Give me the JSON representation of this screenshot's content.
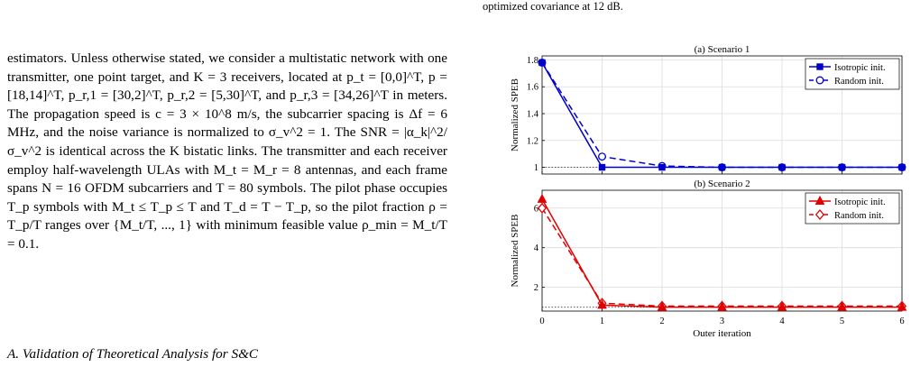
{
  "caption_tail": "optimized covariance at 12 dB.",
  "body_paragraph": "estimators. Unless otherwise stated, we consider a multistatic network with one transmitter, one point target, and K = 3 receivers, located at p_t = [0,0]^T, p = [18,14]^T, p_r,1 = [30,2]^T, p_r,2 = [5,30]^T, and p_r,3 = [34,26]^T in meters. The propagation speed is c = 3 × 10^8 m/s, the subcarrier spacing is Δf = 6 MHz, and the noise variance is normalized to σ_v^2 = 1. The SNR = |α_k|^2/σ_v^2 is identical across the K bistatic links. The transmitter and each receiver employ half-wavelength ULAs with M_t = M_r = 8 antennas, and each frame spans N = 16 OFDM subcarriers and T = 80 symbols. The pilot phase occupies T_p symbols with M_t ≤ T_p ≤ T and T_d = T − T_p, so the pilot fraction ρ = T_p/T ranges over {M_t/T, ..., 1} with minimum feasible value ρ_min = M_t/T = 0.1.",
  "subsection_title": "A. Validation of Theoretical Analysis for S&C",
  "colors": {
    "scenario1": "#0000cc",
    "scenario2": "#e00000",
    "reference": "#555555"
  },
  "chart_data": [
    {
      "type": "line",
      "title": "(a) Scenario 1",
      "xlabel": "",
      "ylabel": "Normalized SPEB",
      "x": [
        0,
        1,
        2,
        3,
        4,
        5,
        6
      ],
      "xlim": [
        0,
        6
      ],
      "ylim": [
        0.95,
        1.83
      ],
      "yticks": [
        "1",
        "1.2",
        "1.4",
        "1.6",
        "1.8"
      ],
      "reference_line": 1,
      "legend_position": "top-right",
      "series": [
        {
          "name": "Isotropic init.",
          "style": "solid",
          "marker": "filled-square",
          "values": [
            1.78,
            1.0,
            1.0,
            1.0,
            1.0,
            1.0,
            1.0
          ]
        },
        {
          "name": "Random init.",
          "style": "dashed",
          "marker": "open-circle",
          "values": [
            1.78,
            1.08,
            1.01,
            1.0,
            1.0,
            1.0,
            1.0
          ]
        }
      ]
    },
    {
      "type": "line",
      "title": "(b) Scenario 2",
      "xlabel": "Outer iteration",
      "ylabel": "Normalized SPEB",
      "x": [
        0,
        1,
        2,
        3,
        4,
        5,
        6
      ],
      "xticks": [
        "0",
        "1",
        "2",
        "3",
        "4",
        "5",
        "6"
      ],
      "xlim": [
        0,
        6
      ],
      "ylim": [
        0.8,
        6.9
      ],
      "yticks": [
        "2",
        "4",
        "6"
      ],
      "reference_line": 1,
      "legend_position": "top-right",
      "series": [
        {
          "name": "Isotropic init.",
          "style": "solid",
          "marker": "filled-triangle",
          "values": [
            6.45,
            1.1,
            1.0,
            1.0,
            1.0,
            1.0,
            1.0
          ]
        },
        {
          "name": "Random init.",
          "style": "dashed",
          "marker": "open-diamond",
          "values": [
            6.0,
            1.2,
            1.05,
            1.05,
            1.05,
            1.05,
            1.05
          ]
        }
      ]
    }
  ]
}
